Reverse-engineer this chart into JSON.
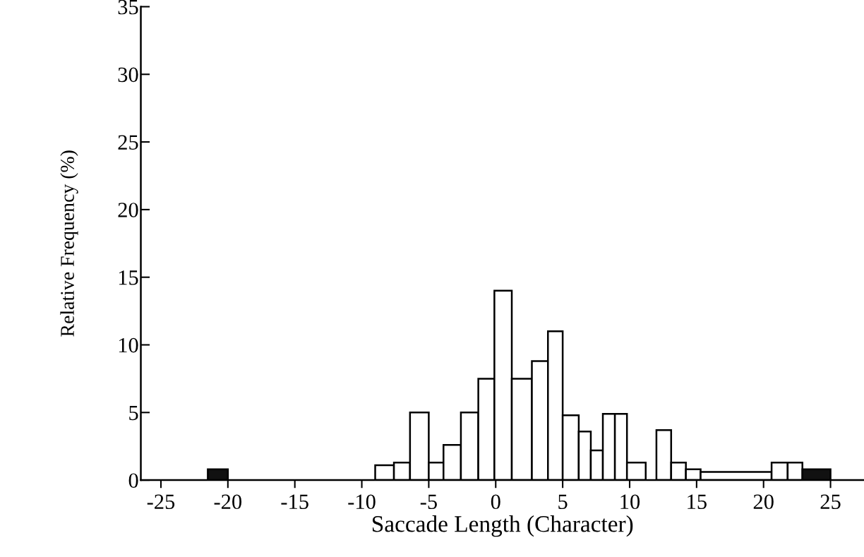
{
  "chart_data": {
    "type": "histogram",
    "xlabel": "Saccade Length (Character)",
    "ylabel": "Relative Frequency (%)",
    "bins": [
      -21.5,
      -20,
      -9.0,
      -7.6,
      -6.4,
      -5.0,
      -3.9,
      -2.6,
      -1.3,
      -0.1,
      1.2,
      2.7,
      3.9,
      5.0,
      6.2,
      7.1,
      8.0,
      8.9,
      9.8,
      11.2,
      12.0,
      13.1,
      14.2,
      15.3,
      20.6,
      21.8,
      22.9,
      25
    ],
    "values": [
      0.8,
      0,
      1.1,
      1.3,
      5.0,
      1.3,
      2.6,
      5.0,
      7.5,
      14.0,
      7.5,
      8.8,
      11.0,
      4.8,
      3.6,
      2.2,
      4.9,
      4.9,
      1.3,
      0,
      3.7,
      1.3,
      0.8,
      0.6,
      1.3,
      1.3,
      0.8
    ],
    "colors": [
      "#111111",
      "#ffffff",
      "#ffffff",
      "#ffffff",
      "#ffffff",
      "#ffffff",
      "#ffffff",
      "#ffffff",
      "#ffffff",
      "#ffffff",
      "#ffffff",
      "#ffffff",
      "#ffffff",
      "#ffffff",
      "#ffffff",
      "#ffffff",
      "#ffffff",
      "#ffffff",
      "#ffffff",
      "#ffffff",
      "#ffffff",
      "#ffffff",
      "#ffffff",
      "#ffffff",
      "#ffffff",
      "#ffffff",
      "#111111"
    ],
    "xlim": [
      -26.5,
      27.5
    ],
    "xticks": [
      -25,
      -20,
      -15,
      -10,
      -5,
      0,
      5,
      10,
      15,
      20,
      25
    ],
    "ylim": [
      0,
      35
    ],
    "yticks": [
      0,
      5,
      10,
      15,
      20,
      25,
      30,
      35
    ],
    "grid": false
  }
}
